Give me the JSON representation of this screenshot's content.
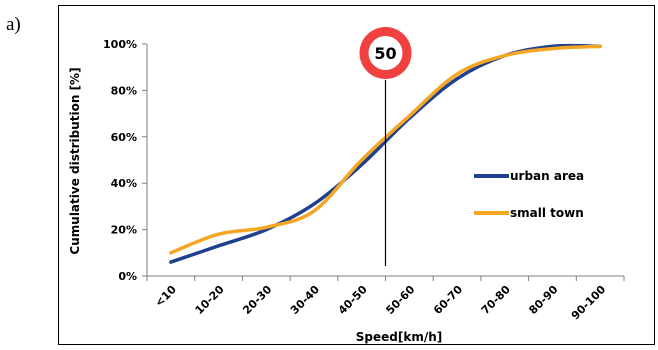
{
  "panel_label": "a)",
  "chart_data": {
    "type": "line",
    "categories": [
      "<10",
      "10-20",
      "20-30",
      "30-40",
      "40-50",
      "50-60",
      "60-70",
      "70-80",
      "80-90",
      "90-100"
    ],
    "xlabel": "Speed[km/h]",
    "ylabel": "Cumulative distribution [%]",
    "ylim": [
      0,
      100
    ],
    "yticks": [
      0,
      20,
      40,
      60,
      80,
      100
    ],
    "ytick_labels": [
      "0%",
      "20%",
      "40%",
      "60%",
      "80%",
      "100%"
    ],
    "grid": false,
    "legend_position": "right",
    "series": [
      {
        "name": "urban area",
        "color": "#1f3f8f",
        "values": [
          6,
          13,
          20,
          31,
          48,
          68,
          85,
          95,
          99,
          99
        ]
      },
      {
        "name": "small town",
        "color": "#f5a623",
        "values": [
          10,
          18,
          21,
          28,
          50,
          69,
          87,
          95,
          98,
          99
        ]
      }
    ],
    "annotation": {
      "label": "50",
      "category_index": 5,
      "ring_color": "#f04040"
    }
  }
}
